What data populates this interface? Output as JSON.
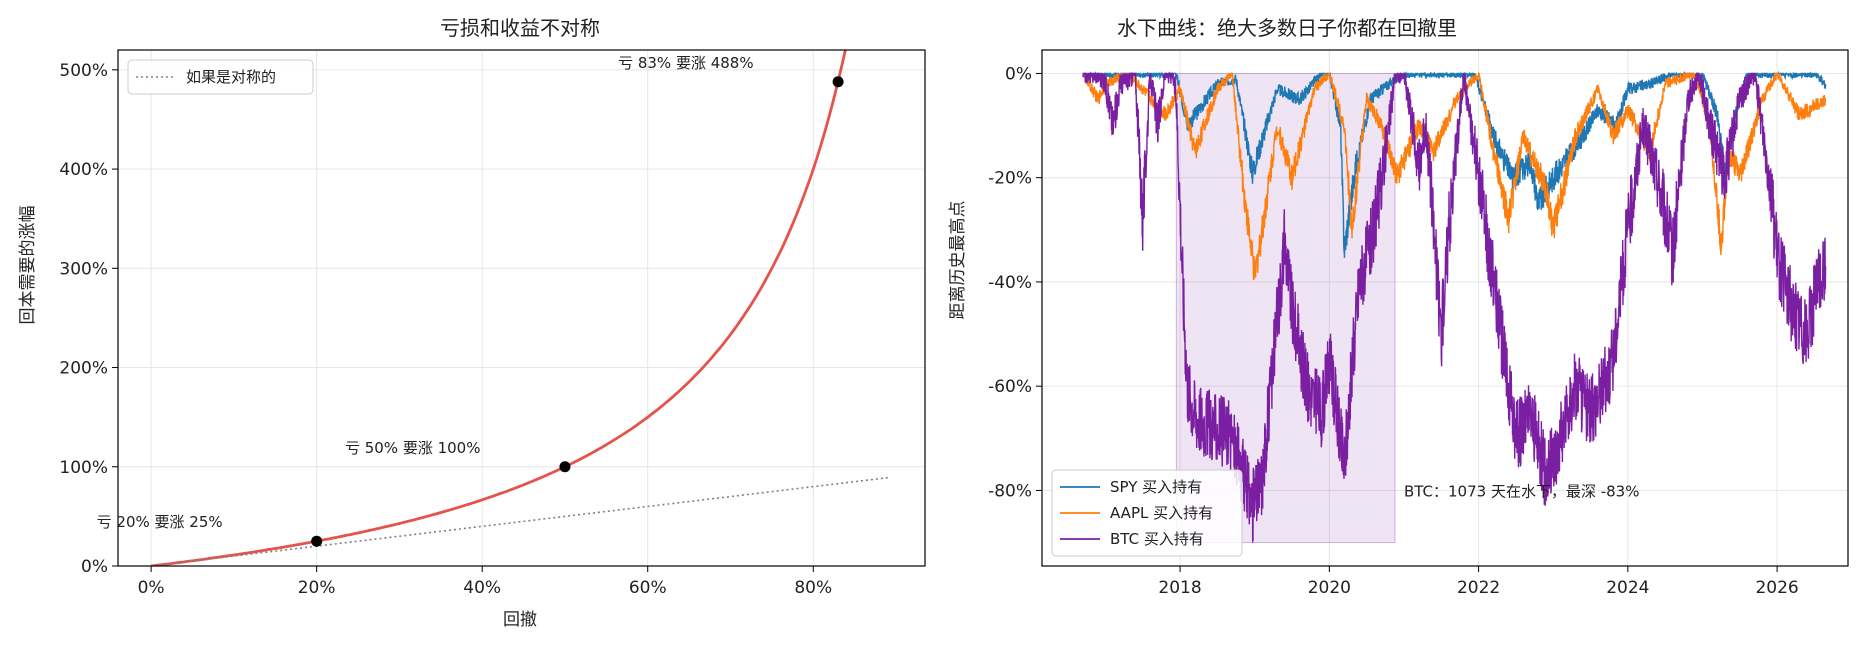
{
  "chart_data": [
    {
      "type": "line",
      "title": "亏损和收益不对称",
      "xlabel": "回撤",
      "ylabel": "回本需要的涨幅",
      "xlim": [
        -0.04,
        0.935
      ],
      "ylim": [
        0,
        5.2
      ],
      "x_ticks": [
        0,
        0.2,
        0.4,
        0.6,
        0.8
      ],
      "x_tick_labels": [
        "0%",
        "20%",
        "40%",
        "60%",
        "80%"
      ],
      "y_ticks": [
        0,
        1,
        2,
        3,
        4,
        5
      ],
      "y_tick_labels": [
        "0%",
        "100%",
        "200%",
        "300%",
        "400%",
        "500%"
      ],
      "grid": true,
      "legend_position": "top-left",
      "series": [
        {
          "name": "",
          "style": "solid",
          "color": "#e5534b",
          "formula": "d/(1-d)",
          "x": [
            0,
            0.1,
            0.2,
            0.3,
            0.4,
            0.5,
            0.6,
            0.7,
            0.75,
            0.8,
            0.83,
            0.85
          ],
          "y": [
            0,
            0.111,
            0.25,
            0.429,
            0.667,
            1.0,
            1.5,
            2.333,
            3.0,
            4.0,
            4.88,
            5.67
          ]
        },
        {
          "name": "如果是对称的",
          "style": "dotted",
          "color": "#808080",
          "x": [
            0,
            0.89
          ],
          "y": [
            0,
            0.89
          ]
        }
      ],
      "points": [
        {
          "x": 0.2,
          "y": 0.25,
          "label": "亏 20% 要涨 25%"
        },
        {
          "x": 0.5,
          "y": 1.0,
          "label": "亏 50% 要涨 100%"
        },
        {
          "x": 0.83,
          "y": 4.88,
          "label": "亏 83% 要涨 488%"
        }
      ]
    },
    {
      "type": "line",
      "title": "水下曲线：绝大多数日子你都在回撤里",
      "xlabel": "",
      "ylabel": "距离历史最高点",
      "xlim": [
        2016.15,
        2026.95
      ],
      "ylim": [
        -0.945,
        0.045
      ],
      "x_ticks": [
        2018,
        2020,
        2022,
        2024,
        2026
      ],
      "x_tick_labels": [
        "2018",
        "2020",
        "2022",
        "2024",
        "2026"
      ],
      "y_ticks": [
        0,
        -0.2,
        -0.4,
        -0.6,
        -0.8
      ],
      "y_tick_labels": [
        "0%",
        "-20%",
        "-40%",
        "-60%",
        "-80%"
      ],
      "grid": true,
      "legend_position": "bottom-left",
      "shaded_region": {
        "x": [
          2017.95,
          2020.88
        ],
        "y": [
          -0.9,
          0
        ],
        "color": "#7b1fa2"
      },
      "annotation": {
        "x": 2021.0,
        "y": -0.8,
        "text": "BTC：1073 天在水下，最深 -83%"
      },
      "series": [
        {
          "name": "SPY 买入持有",
          "color": "#1f77b4",
          "x": [
            2016.7,
            2017.0,
            2017.5,
            2017.95,
            2018.1,
            2018.3,
            2018.5,
            2018.75,
            2018.97,
            2019.3,
            2019.6,
            2019.9,
            2020.0,
            2020.15,
            2020.2,
            2020.35,
            2020.55,
            2020.8,
            2021.0,
            2021.5,
            2021.95,
            2022.2,
            2022.45,
            2022.7,
            2022.8,
            2023.0,
            2023.4,
            2023.6,
            2023.85,
            2024.0,
            2024.3,
            2024.6,
            2025.0,
            2025.2,
            2025.3,
            2025.45,
            2025.6,
            2026.0,
            2026.5,
            2026.65
          ],
          "y": [
            0,
            0,
            0,
            0,
            -0.1,
            -0.06,
            -0.02,
            -0.01,
            -0.19,
            -0.03,
            -0.05,
            0,
            0,
            -0.1,
            -0.34,
            -0.18,
            -0.05,
            -0.02,
            0,
            0,
            0,
            -0.12,
            -0.2,
            -0.17,
            -0.25,
            -0.2,
            -0.12,
            -0.07,
            -0.1,
            -0.03,
            -0.02,
            0,
            0,
            -0.08,
            -0.19,
            -0.07,
            0,
            0,
            0,
            -0.02
          ]
        },
        {
          "name": "AAPL 买入持有",
          "color": "#ff7f0e",
          "x": [
            2016.7,
            2016.9,
            2017.0,
            2017.3,
            2017.5,
            2017.8,
            2018.0,
            2018.2,
            2018.5,
            2018.7,
            2018.85,
            2019.0,
            2019.1,
            2019.3,
            2019.5,
            2019.8,
            2020.0,
            2020.2,
            2020.3,
            2020.5,
            2020.7,
            2020.9,
            2021.2,
            2021.4,
            2021.7,
            2022.0,
            2022.2,
            2022.4,
            2022.6,
            2022.9,
            2023.0,
            2023.3,
            2023.6,
            2023.8,
            2024.0,
            2024.3,
            2024.5,
            2024.9,
            2025.1,
            2025.25,
            2025.35,
            2025.5,
            2025.8,
            2026.0,
            2026.3,
            2026.65
          ],
          "y": [
            0,
            -0.05,
            -0.02,
            0,
            -0.03,
            -0.08,
            -0.03,
            -0.15,
            -0.03,
            0,
            -0.22,
            -0.39,
            -0.3,
            -0.1,
            -0.2,
            -0.03,
            0,
            -0.1,
            -0.3,
            -0.05,
            -0.1,
            -0.2,
            -0.1,
            -0.15,
            -0.05,
            0,
            -0.15,
            -0.28,
            -0.12,
            -0.22,
            -0.3,
            -0.12,
            -0.03,
            -0.12,
            -0.07,
            -0.15,
            -0.02,
            0,
            -0.1,
            -0.33,
            -0.15,
            -0.2,
            -0.05,
            0,
            -0.08,
            -0.05
          ]
        },
        {
          "name": "BTC 买入持有",
          "color": "#7b1fa2",
          "x": [
            2016.7,
            2016.9,
            2017.0,
            2017.1,
            2017.2,
            2017.4,
            2017.5,
            2017.6,
            2017.7,
            2017.8,
            2017.9,
            2017.95,
            2018.05,
            2018.1,
            2018.2,
            2018.35,
            2018.5,
            2018.7,
            2018.9,
            2018.97,
            2019.1,
            2019.25,
            2019.4,
            2019.5,
            2019.7,
            2019.9,
            2020.0,
            2020.2,
            2020.4,
            2020.6,
            2020.8,
            2020.88,
            2021.0,
            2021.2,
            2021.3,
            2021.5,
            2021.6,
            2021.8,
            2021.9,
            2022.1,
            2022.3,
            2022.5,
            2022.7,
            2022.9,
            2023.1,
            2023.3,
            2023.5,
            2023.8,
            2024.0,
            2024.2,
            2024.4,
            2024.6,
            2024.8,
            2024.95,
            2025.1,
            2025.3,
            2025.5,
            2025.7,
            2025.9,
            2026.0,
            2026.2,
            2026.4,
            2026.55,
            2026.65
          ],
          "y": [
            0,
            0,
            -0.02,
            -0.1,
            -0.02,
            0,
            -0.28,
            0,
            -0.1,
            0,
            0,
            -0.05,
            -0.45,
            -0.6,
            -0.65,
            -0.67,
            -0.68,
            -0.7,
            -0.8,
            -0.83,
            -0.78,
            -0.55,
            -0.32,
            -0.45,
            -0.6,
            -0.65,
            -0.55,
            -0.75,
            -0.4,
            -0.3,
            -0.1,
            0,
            0,
            -0.18,
            -0.1,
            -0.5,
            -0.3,
            0,
            -0.1,
            -0.3,
            -0.5,
            -0.7,
            -0.65,
            -0.77,
            -0.7,
            -0.6,
            -0.65,
            -0.55,
            -0.3,
            -0.1,
            -0.2,
            -0.35,
            -0.05,
            0,
            -0.1,
            -0.2,
            -0.05,
            0,
            -0.2,
            -0.35,
            -0.45,
            -0.5,
            -0.4,
            -0.37
          ]
        }
      ]
    }
  ]
}
